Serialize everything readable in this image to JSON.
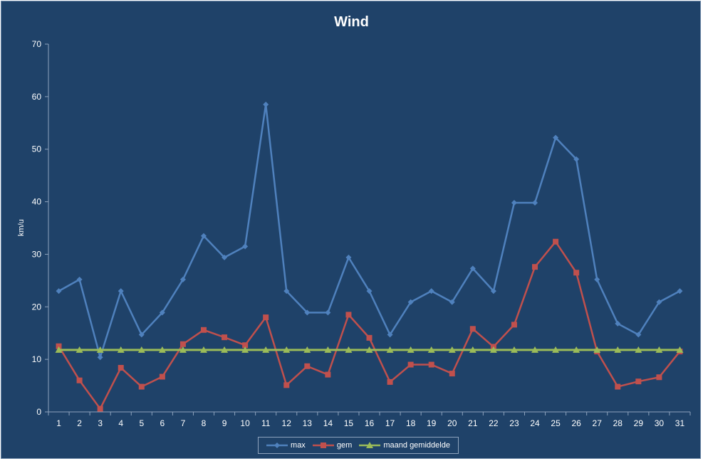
{
  "chart_data": {
    "type": "line",
    "title": "Wind",
    "xlabel": "",
    "ylabel": "km/u",
    "ylim": [
      0,
      70
    ],
    "yticks": [
      0,
      10,
      20,
      30,
      40,
      50,
      60,
      70
    ],
    "categories": [
      "1",
      "2",
      "3",
      "4",
      "5",
      "6",
      "7",
      "8",
      "9",
      "10",
      "11",
      "12",
      "13",
      "14",
      "15",
      "16",
      "17",
      "18",
      "19",
      "20",
      "21",
      "22",
      "23",
      "24",
      "25",
      "26",
      "27",
      "28",
      "29",
      "30",
      "31"
    ],
    "grid": false,
    "legend": "bottom",
    "series": [
      {
        "name": "max",
        "color": "#4f81bd",
        "marker": "diamond",
        "values": [
          23.0,
          25.2,
          10.4,
          23.0,
          14.7,
          18.9,
          25.2,
          33.5,
          29.4,
          31.5,
          58.5,
          23.0,
          18.9,
          18.9,
          29.4,
          23.0,
          14.7,
          20.9,
          23.0,
          20.9,
          27.3,
          23.0,
          39.8,
          39.8,
          52.2,
          48.1,
          25.2,
          16.8,
          14.7,
          20.9,
          23.0
        ]
      },
      {
        "name": "gem",
        "color": "#c0504d",
        "marker": "square",
        "values": [
          12.5,
          6.0,
          0.6,
          8.4,
          4.8,
          6.7,
          12.9,
          15.6,
          14.2,
          12.7,
          18.0,
          5.1,
          8.7,
          7.1,
          18.5,
          14.1,
          5.7,
          9.0,
          9.0,
          7.3,
          15.8,
          12.4,
          16.6,
          27.6,
          32.4,
          26.5,
          11.5,
          4.8,
          5.8,
          6.6,
          11.5
        ]
      },
      {
        "name": "maand gemiddelde",
        "color": "#9bbb59",
        "marker": "triangle",
        "values": [
          11.8,
          11.8,
          11.8,
          11.8,
          11.8,
          11.8,
          11.8,
          11.8,
          11.8,
          11.8,
          11.8,
          11.8,
          11.8,
          11.8,
          11.8,
          11.8,
          11.8,
          11.8,
          11.8,
          11.8,
          11.8,
          11.8,
          11.8,
          11.8,
          11.8,
          11.8,
          11.8,
          11.8,
          11.8,
          11.8,
          11.8
        ]
      }
    ]
  }
}
